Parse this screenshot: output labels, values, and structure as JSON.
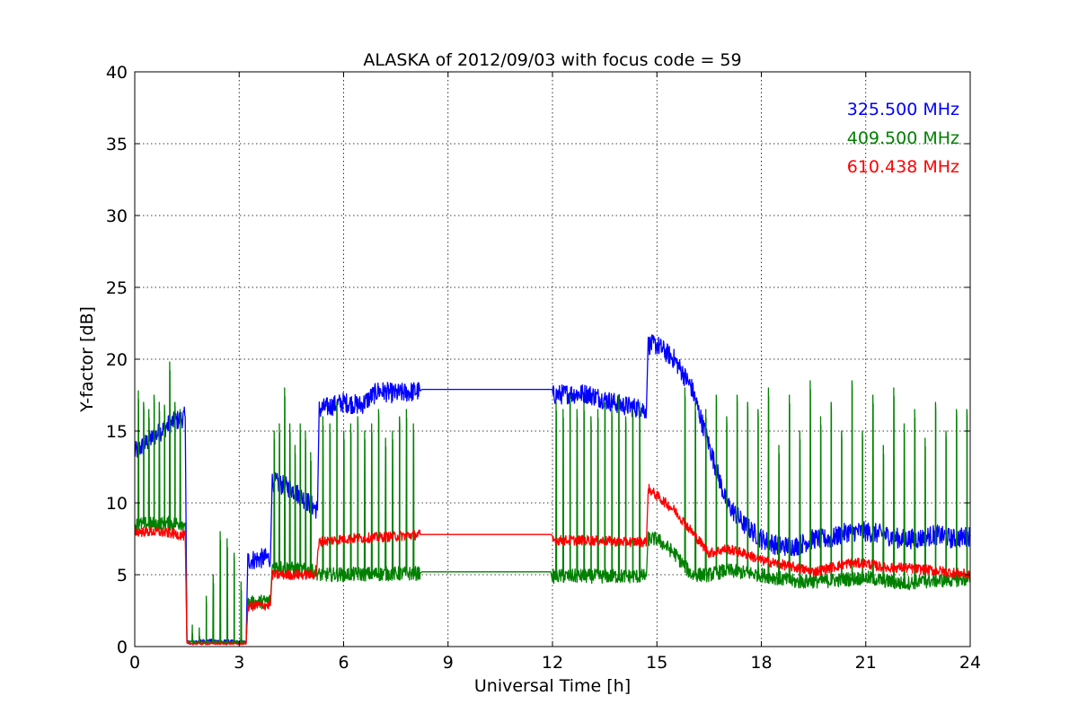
{
  "chart_data": {
    "type": "line",
    "title": "ALASKA of 2012/09/03 with focus code = 59",
    "xlabel": "Universal Time [h]",
    "ylabel": "Y-factor [dB]",
    "xlim": [
      0,
      24
    ],
    "ylim": [
      0,
      40
    ],
    "xticks": [
      0,
      3,
      6,
      9,
      12,
      15,
      18,
      21,
      24
    ],
    "yticks": [
      0,
      5,
      10,
      15,
      20,
      25,
      30,
      35,
      40
    ],
    "grid": true,
    "legend_position": "top-right",
    "series": [
      {
        "name": "325.500 MHz",
        "color": "#0000ff",
        "noise": 0.7,
        "x": [
          0,
          0.5,
          1.0,
          1.45,
          1.5,
          1.55,
          2.0,
          3.0,
          3.2,
          3.25,
          3.9,
          3.95,
          4.5,
          5.0,
          5.25,
          5.3,
          6.0,
          6.5,
          7.0,
          7.5,
          8.2,
          8.25,
          11.95,
          12.0,
          12.5,
          13.0,
          13.5,
          14.0,
          14.7,
          14.75,
          15.0,
          15.5,
          16.0,
          16.5,
          17.0,
          17.5,
          18.0,
          18.5,
          19.0,
          19.5,
          20.0,
          20.5,
          21.0,
          21.5,
          22.0,
          22.5,
          23.0,
          23.5,
          24.0
        ],
        "y": [
          13.5,
          14.5,
          15.5,
          16.0,
          0.4,
          0.3,
          0.4,
          0.3,
          0.3,
          6.0,
          6.2,
          11.5,
          11.0,
          10.0,
          9.5,
          16.5,
          17.0,
          16.8,
          17.8,
          17.6,
          17.8,
          17.9,
          17.9,
          17.5,
          17.6,
          17.6,
          17.2,
          16.8,
          16.5,
          21.0,
          21.0,
          20.0,
          18.0,
          14.0,
          10.0,
          8.5,
          7.5,
          7.0,
          7.0,
          7.5,
          7.5,
          8.0,
          8.0,
          7.8,
          7.5,
          7.5,
          7.8,
          7.5,
          7.7
        ]
      },
      {
        "name": "409.500 MHz",
        "color": "#008000",
        "noise": 0.5,
        "x": [
          0,
          1.45,
          1.5,
          3.2,
          3.25,
          3.9,
          3.95,
          5.2,
          5.3,
          8.2,
          8.25,
          11.95,
          12.0,
          14.7,
          14.75,
          15.0,
          15.5,
          16.0,
          16.5,
          17.0,
          18.0,
          19.0,
          20.0,
          21.0,
          22.0,
          23.0,
          24.0
        ],
        "y": [
          8.5,
          8.6,
          0.3,
          0.3,
          3.0,
          3.2,
          5.6,
          5.2,
          5.0,
          5.1,
          5.2,
          5.2,
          4.9,
          4.9,
          7.5,
          7.5,
          6.5,
          5.0,
          5.0,
          5.3,
          5.0,
          4.5,
          4.6,
          4.8,
          4.4,
          4.6,
          4.7
        ],
        "spikes": [
          0.1,
          0.25,
          0.4,
          0.55,
          0.7,
          0.85,
          1.0,
          1.15,
          1.3,
          1.65,
          1.85,
          2.05,
          2.25,
          2.45,
          2.65,
          2.85,
          3.05,
          4.0,
          4.15,
          4.3,
          4.45,
          4.6,
          4.75,
          4.9,
          5.05,
          5.4,
          5.6,
          5.8,
          6.0,
          6.2,
          6.4,
          6.6,
          6.8,
          7.0,
          7.2,
          7.4,
          7.6,
          7.8,
          8.0,
          12.1,
          12.3,
          12.5,
          12.7,
          12.9,
          13.1,
          13.3,
          13.5,
          13.7,
          13.9,
          14.1,
          14.3,
          14.5,
          15.8,
          16.1,
          16.4,
          16.7,
          17.0,
          17.3,
          17.6,
          17.9,
          18.2,
          18.5,
          18.8,
          19.1,
          19.4,
          19.7,
          20.0,
          20.3,
          20.6,
          20.9,
          21.2,
          21.5,
          21.8,
          22.1,
          22.4,
          22.7,
          23.0,
          23.3,
          23.6,
          23.9
        ],
        "spike_heights": [
          17.8,
          17.0,
          16.5,
          17.5,
          17.0,
          16.8,
          19.8,
          17.0,
          16.5,
          1.5,
          1.3,
          3.5,
          5.0,
          8.0,
          7.5,
          6.5,
          4.5,
          15.0,
          15.5,
          18.0,
          15.5,
          14.0,
          15.5,
          15.0,
          13.5,
          16.0,
          15.5,
          17.0,
          15.0,
          15.5,
          16.0,
          15.0,
          15.5,
          16.5,
          14.5,
          15.0,
          16.0,
          16.5,
          15.5,
          17.0,
          16.5,
          17.5,
          16.5,
          17.0,
          16.0,
          16.5,
          17.0,
          16.5,
          17.5,
          16.0,
          16.5,
          17.0,
          18.0,
          17.0,
          16.5,
          17.5,
          16.0,
          17.5,
          17.0,
          16.5,
          18.0,
          14.0,
          17.5,
          15.0,
          18.5,
          16.0,
          17.0,
          15.0,
          18.5,
          15.0,
          17.5,
          14.0,
          18.0,
          15.5,
          16.5,
          14.5,
          17.0,
          15.0,
          16.5,
          16.5
        ]
      },
      {
        "name": "610.438 MHz",
        "color": "#ff0000",
        "noise": 0.35,
        "x": [
          0,
          0.5,
          1.0,
          1.45,
          1.5,
          2.0,
          3.2,
          3.25,
          3.9,
          3.95,
          4.5,
          5.2,
          5.3,
          6.0,
          7.0,
          8.2,
          8.25,
          11.95,
          12.0,
          13.0,
          14.0,
          14.7,
          14.75,
          15.0,
          15.5,
          16.0,
          16.5,
          17.0,
          17.5,
          18.0,
          19.0,
          19.5,
          20.0,
          20.5,
          21.0,
          21.5,
          22.0,
          23.0,
          24.0
        ],
        "y": [
          8.0,
          8.0,
          7.9,
          7.7,
          0.2,
          0.2,
          0.2,
          2.8,
          2.9,
          5.0,
          5.0,
          5.0,
          7.3,
          7.5,
          7.6,
          7.8,
          7.8,
          7.8,
          7.4,
          7.4,
          7.3,
          7.3,
          11.0,
          10.5,
          9.5,
          8.0,
          6.5,
          6.8,
          6.5,
          6.0,
          5.5,
          5.2,
          5.5,
          5.8,
          5.8,
          5.5,
          5.5,
          5.3,
          5.0
        ]
      }
    ]
  }
}
